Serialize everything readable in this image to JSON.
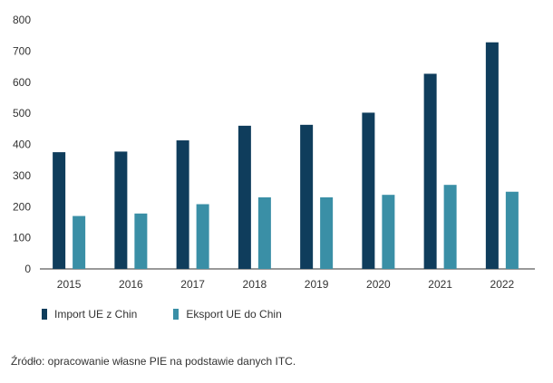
{
  "chart_data": {
    "type": "bar",
    "categories": [
      "2015",
      "2016",
      "2017",
      "2018",
      "2019",
      "2020",
      "2021",
      "2022"
    ],
    "series": [
      {
        "name": "Import UE z Chin",
        "color": "#0f3d5c",
        "values": [
          375,
          377,
          413,
          460,
          463,
          502,
          627,
          728
        ]
      },
      {
        "name": "Eksport UE do Chin",
        "color": "#3a8fa6",
        "values": [
          170,
          178,
          208,
          230,
          230,
          238,
          270,
          248
        ]
      }
    ],
    "ylim": [
      0,
      800
    ],
    "yticks": [
      "0",
      "100",
      "200",
      "300",
      "400",
      "500",
      "600",
      "700",
      "800"
    ],
    "grid": false,
    "legend": "bottom-left"
  },
  "source_note": "Źródło: opracowanie własne PIE na podstawie danych ITC."
}
